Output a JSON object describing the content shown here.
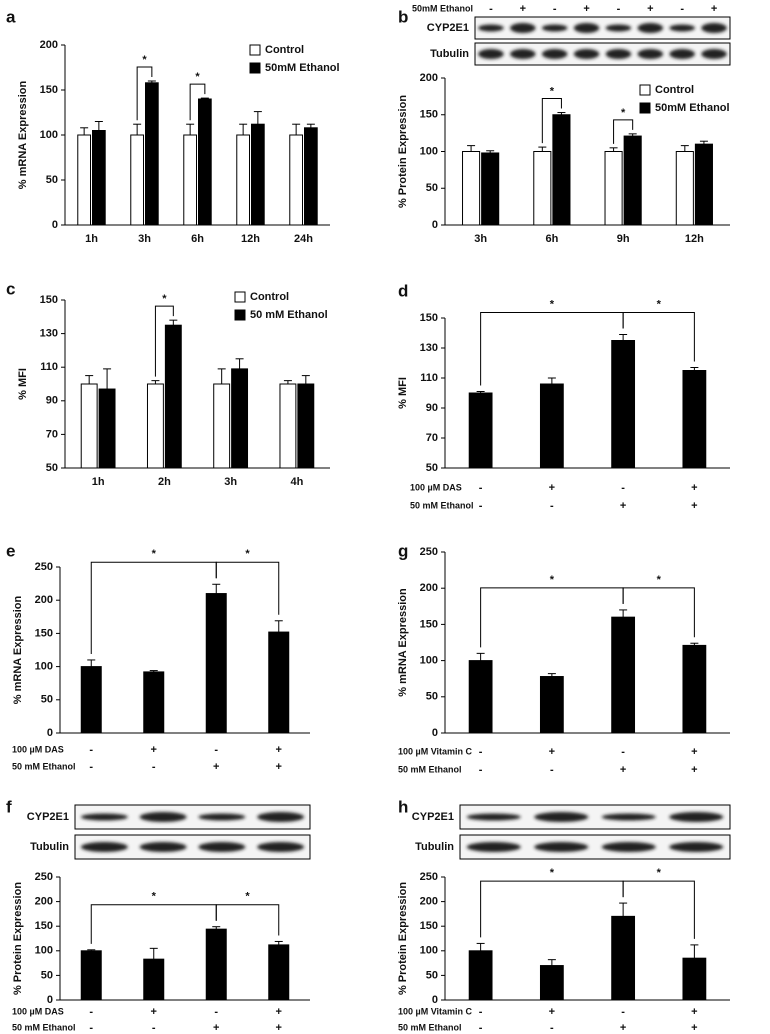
{
  "chart_data": [
    {
      "type": "bar",
      "panel": "a",
      "ylabel": "% mRNA Expression",
      "categories": [
        "1h",
        "3h",
        "6h",
        "12h",
        "24h"
      ],
      "series": [
        {
          "name": "Control",
          "color": "#ffffff",
          "values": [
            100,
            100,
            100,
            100,
            100
          ],
          "errors": [
            8,
            12,
            12,
            12,
            12
          ]
        },
        {
          "name": "50mM Ethanol",
          "color": "#000000",
          "values": [
            105,
            158,
            140,
            112,
            108
          ],
          "errors": [
            10,
            2,
            1,
            14,
            4
          ]
        }
      ],
      "ylim": [
        0,
        200
      ],
      "yticks": [
        0,
        50,
        100,
        150,
        200
      ],
      "annotations": [
        {
          "text": "*",
          "category": 1
        },
        {
          "text": "*",
          "category": 2
        }
      ]
    },
    {
      "type": "bar",
      "panel": "b",
      "ylabel": "% Protein Expression",
      "categories": [
        "3h",
        "6h",
        "9h",
        "12h"
      ],
      "series": [
        {
          "name": "Control",
          "color": "#ffffff",
          "values": [
            100,
            100,
            100,
            100
          ],
          "errors": [
            8,
            6,
            5,
            8
          ]
        },
        {
          "name": "50mM Ethanol",
          "color": "#000000",
          "values": [
            98,
            150,
            121,
            110
          ],
          "errors": [
            3,
            3,
            3,
            4
          ]
        }
      ],
      "ylim": [
        0,
        200
      ],
      "yticks": [
        0,
        50,
        100,
        150,
        200
      ],
      "annotations": [
        {
          "text": "*",
          "category": 1
        },
        {
          "text": "*",
          "category": 2
        }
      ],
      "blot": {
        "header": "50mM Ethanol",
        "signs": [
          "-",
          "+",
          "-",
          "+",
          "-",
          "+",
          "-",
          "+"
        ],
        "rows": [
          "CYP2E1",
          "Tubulin"
        ]
      }
    },
    {
      "type": "bar",
      "panel": "c",
      "ylabel": "% MFI",
      "categories": [
        "1h",
        "2h",
        "3h",
        "4h"
      ],
      "series": [
        {
          "name": "Control",
          "color": "#ffffff",
          "values": [
            100,
            100,
            100,
            100
          ],
          "errors": [
            5,
            2,
            9,
            2
          ]
        },
        {
          "name": "50 mM Ethanol",
          "color": "#000000",
          "values": [
            97,
            135,
            109,
            100
          ],
          "errors": [
            12,
            3,
            6,
            5
          ]
        }
      ],
      "ylim": [
        50,
        150
      ],
      "yticks": [
        50,
        70,
        90,
        110,
        130,
        150
      ],
      "annotations": [
        {
          "text": "*",
          "category": 1
        }
      ]
    },
    {
      "type": "bar",
      "panel": "d",
      "ylabel": "% MFI",
      "values": [
        100,
        106,
        135,
        115
      ],
      "errors": [
        1,
        4,
        4,
        2
      ],
      "color": "#000000",
      "ylim": [
        50,
        150
      ],
      "yticks": [
        50,
        70,
        90,
        110,
        130,
        150
      ],
      "conditions": [
        {
          "label": "100 µM DAS",
          "signs": [
            "-",
            "+",
            "-",
            "+"
          ]
        },
        {
          "label": "50 mM Ethanol",
          "signs": [
            "-",
            "-",
            "+",
            "+"
          ]
        }
      ],
      "annotations": [
        {
          "text": "*",
          "from": 0,
          "to": 2
        },
        {
          "text": "*",
          "from": 2,
          "to": 3
        }
      ]
    },
    {
      "type": "bar",
      "panel": "e",
      "ylabel": "% mRNA Expression",
      "values": [
        100,
        92,
        210,
        152
      ],
      "errors": [
        10,
        2,
        14,
        17
      ],
      "color": "#000000",
      "ylim": [
        0,
        250
      ],
      "yticks": [
        0,
        50,
        100,
        150,
        200,
        250
      ],
      "conditions": [
        {
          "label": "100 µM DAS",
          "signs": [
            "-",
            "+",
            "-",
            "+"
          ]
        },
        {
          "label": "50 mM Ethanol",
          "signs": [
            "-",
            "-",
            "+",
            "+"
          ]
        }
      ],
      "annotations": [
        {
          "text": "*",
          "from": 0,
          "to": 2
        },
        {
          "text": "*",
          "from": 2,
          "to": 3
        }
      ]
    },
    {
      "type": "bar",
      "panel": "g",
      "ylabel": "% mRNA Expression",
      "values": [
        100,
        78,
        160,
        121
      ],
      "errors": [
        10,
        4,
        10,
        3
      ],
      "color": "#000000",
      "ylim": [
        0,
        250
      ],
      "yticks": [
        0,
        50,
        100,
        150,
        200,
        250
      ],
      "conditions": [
        {
          "label": "100 µM Vitamin C",
          "signs": [
            "-",
            "+",
            "-",
            "+"
          ]
        },
        {
          "label": "50 mM Ethanol",
          "signs": [
            "-",
            "-",
            "+",
            "+"
          ]
        }
      ],
      "annotations": [
        {
          "text": "*",
          "from": 0,
          "to": 2
        },
        {
          "text": "*",
          "from": 2,
          "to": 3
        }
      ]
    },
    {
      "type": "bar",
      "panel": "f",
      "ylabel": "% Protein Expression",
      "values": [
        100,
        83,
        144,
        112
      ],
      "errors": [
        2,
        22,
        5,
        7
      ],
      "color": "#000000",
      "ylim": [
        0,
        250
      ],
      "yticks": [
        0,
        50,
        100,
        150,
        200,
        250
      ],
      "conditions": [
        {
          "label": "100 µM DAS",
          "signs": [
            "-",
            "+",
            "-",
            "+"
          ]
        },
        {
          "label": "50 mM Ethanol",
          "signs": [
            "-",
            "-",
            "+",
            "+"
          ]
        }
      ],
      "annotations": [
        {
          "text": "*",
          "from": 0,
          "to": 2
        },
        {
          "text": "*",
          "from": 2,
          "to": 3
        }
      ],
      "blot": {
        "rows": [
          "CYP2E1",
          "Tubulin"
        ]
      }
    },
    {
      "type": "bar",
      "panel": "h",
      "ylabel": "% Protein Expression",
      "values": [
        100,
        70,
        170,
        85
      ],
      "errors": [
        15,
        12,
        27,
        27
      ],
      "color": "#000000",
      "ylim": [
        0,
        250
      ],
      "yticks": [
        0,
        50,
        100,
        150,
        200,
        250
      ],
      "conditions": [
        {
          "label": "100 µM Vitamin C",
          "signs": [
            "-",
            "+",
            "-",
            "+"
          ]
        },
        {
          "label": "50 mM Ethanol",
          "signs": [
            "-",
            "-",
            "+",
            "+"
          ]
        }
      ],
      "annotations": [
        {
          "text": "*",
          "from": 0,
          "to": 2
        },
        {
          "text": "*",
          "from": 2,
          "to": 3
        }
      ],
      "blot": {
        "rows": [
          "CYP2E1",
          "Tubulin"
        ]
      }
    }
  ]
}
